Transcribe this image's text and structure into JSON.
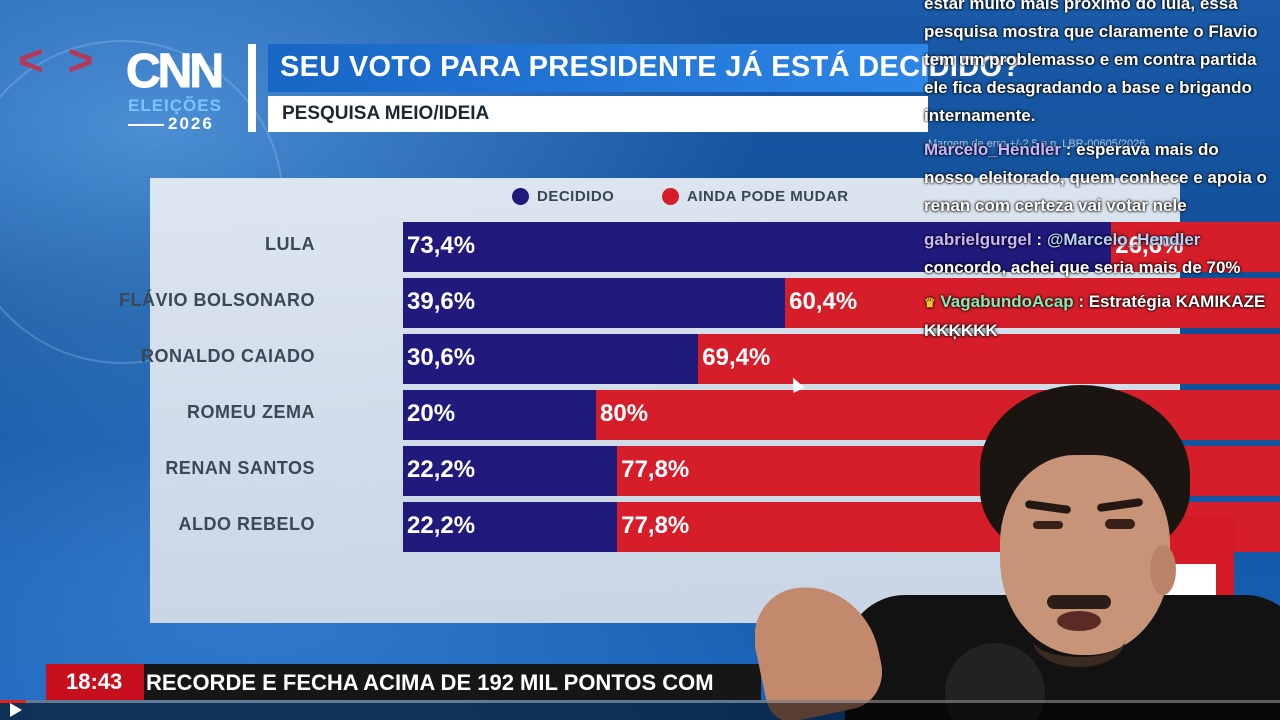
{
  "graphic": {
    "logo": {
      "brand": "CNN",
      "eleicoes": "ELEIÇÕES",
      "year": "2026"
    },
    "headline": "SEU VOTO PARA PRESIDENTE JÁ ESTÁ DECIDIDO?",
    "subheadline": "PESQUISA MEIO/IDEIA",
    "margin_note": "Margem de erro +/-2,5 p.p. LBR-00605/2026",
    "legend": [
      {
        "label": "DECIDIDO",
        "color": "#1f1a7c"
      },
      {
        "label": "AINDA PODE MUDAR",
        "color": "#d61e2a"
      }
    ]
  },
  "chart_data": {
    "type": "bar",
    "stacked": true,
    "orientation": "horizontal",
    "categories": [
      "LULA",
      "FLÁVIO BOLSONARO",
      "RONALDO CAIADO",
      "ROMEU ZEMA",
      "RENAN SANTOS",
      "ALDO REBELO"
    ],
    "series": [
      {
        "name": "DECIDIDO",
        "values": [
          73.4,
          39.6,
          30.6,
          20,
          22.2,
          22.2
        ],
        "labels": [
          "73,4%",
          "39,6%",
          "30,6%",
          "20%",
          "22,2%",
          "22,2%"
        ],
        "color": "#1f1a7c"
      },
      {
        "name": "AINDA PODE MUDAR",
        "values": [
          26.6,
          60.4,
          69.4,
          80,
          77.8,
          77.8
        ],
        "labels": [
          "26,6%",
          "60,4%",
          "69,4%",
          "80%",
          "77,8%",
          "77,8%"
        ],
        "color": "#d61e2a"
      }
    ],
    "xlim": [
      0,
      100
    ],
    "grid": false,
    "legend_position": "top"
  },
  "chat": {
    "messages": [
      {
        "user": "",
        "mention": "",
        "text": "estar muito mais próximo do lula, essa pesquisa mostra que claramente o Flavio tem um problemasso e em contra partida ele fica desagradando a base e brigando internamente."
      },
      {
        "user": "Marcelo_Hendler",
        "mention": "",
        "text": ": esperava mais do nosso eleitorado, quem conhece e apoia o renan com certeza vai votar nele"
      },
      {
        "user": "gabrielgurgel",
        "mention": "@Marcelo_Hendler",
        "text": "concordo, achei que seria mais de 70%"
      },
      {
        "user": "VagabundoAcap",
        "mention": "",
        "text": ": Estratégia KAMIKAZE KKĶKKK"
      }
    ]
  },
  "ticker": {
    "time": "18:43",
    "text": "RECORDE E FECHA ACIMA DE 192 MIL PONTOS COM"
  },
  "player": {
    "progress": 0.02
  }
}
